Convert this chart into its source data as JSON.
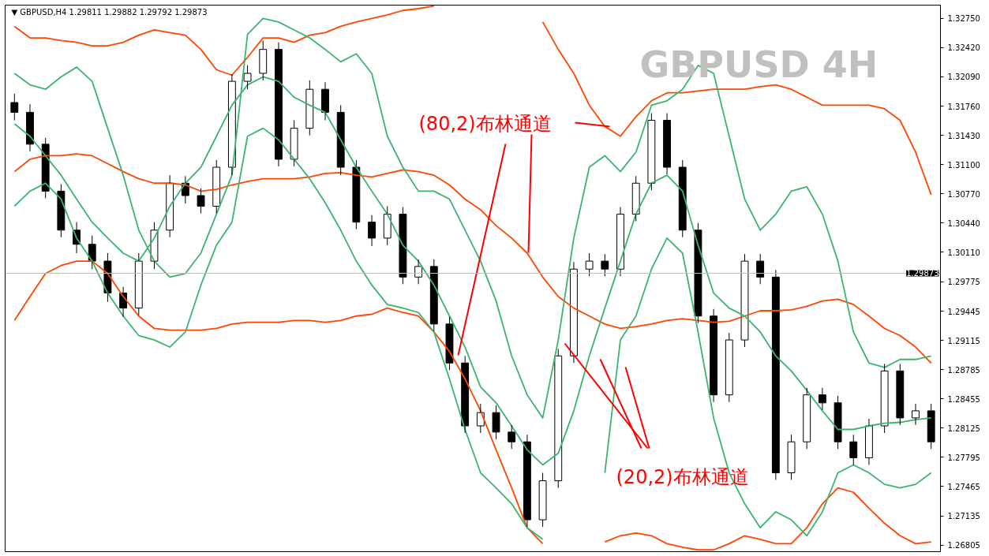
{
  "chart_data": {
    "type": "candlestick",
    "title": "▼ GBPUSD,H4  1.29811 1.29882 1.29792 1.29873",
    "categories": [
      null,
      null,
      null,
      null,
      null,
      null,
      null,
      null,
      null,
      null,
      null,
      null,
      null,
      null,
      null,
      null,
      null,
      null,
      null,
      null,
      null,
      null,
      null,
      null,
      null,
      null,
      null,
      null,
      null,
      null,
      null,
      null,
      null,
      null,
      null,
      null,
      null,
      null,
      null,
      null,
      null,
      null,
      null,
      null,
      null,
      null,
      null,
      null,
      null,
      null,
      null,
      null,
      null,
      null,
      null,
      null,
      null,
      null,
      null,
      null
    ],
    "ohlc": [
      [
        1.318,
        1.319,
        1.316,
        1.3169
      ],
      [
        1.3169,
        1.3178,
        1.3125,
        1.3133
      ],
      [
        1.3133,
        1.314,
        1.3072,
        1.308
      ],
      [
        1.308,
        1.3088,
        1.3028,
        1.3036
      ],
      [
        1.3036,
        1.3045,
        1.301,
        1.302
      ],
      [
        1.302,
        1.303,
        1.2992,
        1.3001
      ],
      [
        1.3001,
        1.301,
        1.2955,
        1.2965
      ],
      [
        1.2965,
        1.2972,
        1.2938,
        1.2948
      ],
      [
        1.2948,
        1.301,
        1.294,
        1.3001
      ],
      [
        1.3001,
        1.3045,
        1.2992,
        1.3036
      ],
      [
        1.3036,
        1.3098,
        1.3028,
        1.3089
      ],
      [
        1.3089,
        1.3097,
        1.3066,
        1.3075
      ],
      [
        1.3075,
        1.3083,
        1.3055,
        1.3063
      ],
      [
        1.3063,
        1.3115,
        1.3055,
        1.3107
      ],
      [
        1.3107,
        1.3212,
        1.3098,
        1.3204
      ],
      [
        1.3204,
        1.3222,
        1.3195,
        1.3213
      ],
      [
        1.3213,
        1.325,
        1.3205,
        1.324
      ],
      [
        1.324,
        1.3248,
        1.3108,
        1.3116
      ],
      [
        1.3116,
        1.316,
        1.3108,
        1.3151
      ],
      [
        1.3151,
        1.3205,
        1.3143,
        1.3195
      ],
      [
        1.3195,
        1.3203,
        1.316,
        1.3169
      ],
      [
        1.3169,
        1.3177,
        1.3098,
        1.3107
      ],
      [
        1.3107,
        1.3115,
        1.3037,
        1.3045
      ],
      [
        1.3045,
        1.3053,
        1.3018,
        1.3027
      ],
      [
        1.3027,
        1.3063,
        1.3019,
        1.3054
      ],
      [
        1.3054,
        1.3062,
        1.2975,
        1.2983
      ],
      [
        1.2983,
        1.3003,
        1.2975,
        1.2995
      ],
      [
        1.2995,
        1.3003,
        1.2922,
        1.293
      ],
      [
        1.293,
        1.2938,
        1.2878,
        1.2886
      ],
      [
        1.2886,
        1.2894,
        1.2807,
        1.2815
      ],
      [
        1.2815,
        1.284,
        1.2807,
        1.283
      ],
      [
        1.283,
        1.2838,
        1.28,
        1.2808
      ],
      [
        1.2808,
        1.2816,
        1.2789,
        1.2797
      ],
      [
        1.2797,
        1.2805,
        1.2701,
        1.2709
      ],
      [
        1.2709,
        1.2762,
        1.2701,
        1.2753
      ],
      [
        1.2753,
        1.2902,
        1.2745,
        1.2894
      ],
      [
        1.2894,
        1.3,
        1.2886,
        1.2992
      ],
      [
        1.2992,
        1.301,
        1.2984,
        1.3001
      ],
      [
        1.3001,
        1.3009,
        1.2984,
        1.2992
      ],
      [
        1.2992,
        1.3062,
        1.2984,
        1.3054
      ],
      [
        1.3054,
        1.3097,
        1.3046,
        1.3089
      ],
      [
        1.3089,
        1.3168,
        1.3081,
        1.316
      ],
      [
        1.316,
        1.3168,
        1.3099,
        1.3107
      ],
      [
        1.3107,
        1.3115,
        1.3028,
        1.3036
      ],
      [
        1.3036,
        1.3044,
        1.2931,
        1.2939
      ],
      [
        1.2939,
        1.2947,
        1.2842,
        1.285
      ],
      [
        1.285,
        1.292,
        1.2842,
        1.2912
      ],
      [
        1.2912,
        1.3009,
        1.2904,
        1.3001
      ],
      [
        1.3001,
        1.3009,
        1.2975,
        1.2983
      ],
      [
        1.2983,
        1.2991,
        1.2754,
        1.2762
      ],
      [
        1.2762,
        1.2805,
        1.2754,
        1.2797
      ],
      [
        1.2797,
        1.2858,
        1.2789,
        1.285
      ],
      [
        1.285,
        1.2858,
        1.2833,
        1.2841
      ],
      [
        1.2841,
        1.2849,
        1.2789,
        1.2797
      ],
      [
        1.2797,
        1.2805,
        1.2771,
        1.2779
      ],
      [
        1.2779,
        1.2823,
        1.2771,
        1.2815
      ],
      [
        1.2815,
        1.2885,
        1.2807,
        1.2877
      ],
      [
        1.2877,
        1.2885,
        1.2816,
        1.2824
      ],
      [
        1.2824,
        1.284,
        1.2816,
        1.2832
      ],
      [
        1.2832,
        1.284,
        1.2789,
        1.2797
      ]
    ],
    "series": [
      {
        "type": "line",
        "color": "#ff4500",
        "values": [
          1.3266,
          1.3253,
          1.3253,
          1.325,
          1.3248,
          1.3244,
          1.3244,
          1.3248,
          1.3256,
          1.3262,
          1.3259,
          1.3256,
          1.324,
          1.3217,
          1.3211,
          1.3231,
          1.3253,
          1.3253,
          1.3248,
          1.3256,
          1.3259,
          1.3266,
          1.3271,
          1.3275,
          1.3279,
          1.3284,
          1.3286,
          1.3289,
          null,
          null,
          null,
          null,
          null,
          null,
          1.3271,
          1.324,
          1.3213,
          1.3177,
          1.3153,
          1.3142,
          1.3164,
          1.3182,
          1.3191,
          1.3191,
          1.3193,
          1.3195,
          1.3195,
          1.3195,
          1.3198,
          1.32,
          1.3195,
          1.3186,
          1.3177,
          1.3177,
          1.3177,
          1.3177,
          1.3173,
          1.316,
          1.3124,
          1.3076
        ]
      },
      {
        "type": "line",
        "color": "#ff4500",
        "values": [
          1.3102,
          1.3116,
          1.312,
          1.312,
          1.3122,
          1.312,
          1.3111,
          1.3102,
          1.3094,
          1.3089,
          1.3089,
          1.3087,
          1.308,
          1.3082,
          1.3087,
          1.3091,
          1.3094,
          1.3094,
          1.3094,
          1.3096,
          1.31,
          1.3101,
          1.3098,
          1.3096,
          1.31,
          1.3104,
          1.3102,
          1.3098,
          1.3087,
          1.3071,
          1.3059,
          1.3041,
          1.3027,
          1.301,
          1.2983,
          1.2961,
          1.2948,
          1.2939,
          1.293,
          1.2925,
          1.2927,
          1.293,
          1.2934,
          1.2936,
          1.2934,
          1.2932,
          1.2933,
          1.2939,
          1.2945,
          1.2945,
          1.2946,
          1.295,
          1.2956,
          1.2958,
          1.2952,
          1.2939,
          1.2925,
          1.2917,
          1.2904,
          1.2886
        ]
      },
      {
        "type": "line",
        "color": "#ff4500",
        "values": [
          1.2934,
          1.2961,
          1.2987,
          1.2996,
          1.3001,
          1.3001,
          1.2987,
          1.2961,
          1.2939,
          1.2925,
          1.2923,
          1.2923,
          1.2923,
          1.2925,
          1.293,
          1.2932,
          1.2932,
          1.2932,
          1.2934,
          1.2934,
          1.2932,
          1.2934,
          1.2939,
          1.2941,
          1.2948,
          1.2943,
          1.2939,
          1.2921,
          1.2899,
          1.2868,
          1.2832,
          1.2788,
          1.2745,
          1.27,
          1.2682,
          null,
          null,
          null,
          1.2684,
          1.2691,
          1.2694,
          1.2691,
          1.2682,
          1.2678,
          1.2675,
          1.2675,
          1.2682,
          1.2691,
          1.2687,
          1.2682,
          1.2682,
          1.27,
          1.2727,
          1.2745,
          1.274,
          1.2722,
          1.2705,
          1.2691,
          1.2682,
          1.2684
        ]
      },
      {
        "type": "line",
        "color": "#3cb371",
        "values": [
          1.3213,
          1.32,
          1.3195,
          1.3209,
          1.322,
          1.3204,
          1.3151,
          1.3098,
          1.3036,
          1.3001,
          1.2983,
          1.2987,
          1.301,
          1.3054,
          1.3098,
          1.3257,
          1.3275,
          1.3271,
          1.3262,
          1.3253,
          1.324,
          1.3226,
          1.3235,
          1.3213,
          1.3142,
          1.3107,
          1.308,
          1.308,
          1.3071,
          1.3036,
          1.3001,
          1.2956,
          1.2894,
          1.285,
          1.2824,
          1.2912,
          1.3027,
          1.3107,
          1.312,
          1.3102,
          1.3124,
          1.3177,
          1.3182,
          1.3195,
          1.3222,
          1.3213,
          1.3142,
          1.3071,
          1.3036,
          1.3054,
          1.308,
          1.3085,
          1.3054,
          1.3001,
          1.2921,
          1.2886,
          1.2881,
          1.289,
          1.289,
          1.2894
        ]
      },
      {
        "type": "line",
        "color": "#3cb371",
        "values": [
          1.3156,
          1.3142,
          1.312,
          1.3098,
          1.3071,
          1.3045,
          1.3027,
          1.301,
          1.3001,
          1.3027,
          1.3063,
          1.3089,
          1.3107,
          1.3142,
          1.3177,
          1.32,
          1.3209,
          1.3204,
          1.3186,
          1.3177,
          1.3169,
          1.3138,
          1.3107,
          1.308,
          1.3054,
          1.3019,
          1.3001,
          1.2974,
          1.2939,
          1.2904,
          1.2859,
          1.2841,
          1.2815,
          1.2788,
          1.2771,
          1.2784,
          1.2832,
          1.2894,
          1.2948,
          1.3001,
          1.3054,
          1.3089,
          1.3098,
          1.308,
          1.3019,
          1.2965,
          1.2948,
          1.2939,
          1.2921,
          1.2894,
          1.2877,
          1.2855,
          1.2832,
          1.2811,
          1.2811,
          1.2815,
          1.2818,
          1.2819,
          1.2822,
          1.2824
        ]
      },
      {
        "type": "line",
        "color": "#3cb371",
        "values": [
          1.3063,
          1.308,
          1.3089,
          1.3071,
          1.3027,
          1.3001,
          1.2965,
          1.2939,
          1.2917,
          1.2912,
          1.2904,
          1.2921,
          1.2974,
          1.3019,
          1.3045,
          1.3142,
          1.3151,
          1.3138,
          1.3116,
          1.3094,
          1.3067,
          1.3036,
          1.3001,
          1.2974,
          1.2952,
          1.2948,
          1.2943,
          1.2921,
          1.2868,
          1.2811,
          1.2762,
          1.2745,
          1.2727,
          1.27,
          1.2687,
          null,
          null,
          null,
          1.2762,
          1.2912,
          1.2939,
          1.2992,
          1.3027,
          1.301,
          1.2921,
          1.2824,
          1.2762,
          1.2727,
          1.27,
          1.2718,
          1.2709,
          1.2691,
          1.2718,
          1.2762,
          1.2771,
          1.2762,
          1.2749,
          1.2745,
          1.2749,
          1.2762
        ]
      }
    ],
    "ylim": [
      1.2673,
      1.329
    ],
    "yticks": [
      1.26805,
      1.27135,
      1.27465,
      1.27795,
      1.28125,
      1.28455,
      1.28785,
      1.29115,
      1.29445,
      1.29775,
      {
        "value": 1.3011,
        "label": "1.30110"
      },
      {
        "value": 1.3044,
        "label": "1.30440"
      },
      {
        "value": 1.3077,
        "label": "1.30770"
      },
      {
        "value": 1.311,
        "label": "1.31100"
      },
      {
        "value": 1.3143,
        "label": "1.31430"
      },
      {
        "value": 1.3176,
        "label": "1.31760"
      },
      {
        "value": 1.3209,
        "label": "1.32090"
      },
      {
        "value": 1.3242,
        "label": "1.32420"
      },
      {
        "value": 1.3275,
        "label": "1.32750"
      }
    ],
    "ref_lines": [
      {
        "axis": "y",
        "value": 1.29873,
        "label": "1.29873",
        "color": "#c0c0c0"
      }
    ],
    "annotations": [
      "GBPUSD  4H",
      "(80,2)布林通道",
      "(20,2)布林通道"
    ],
    "tick_labels": "y",
    "grid": false
  }
}
